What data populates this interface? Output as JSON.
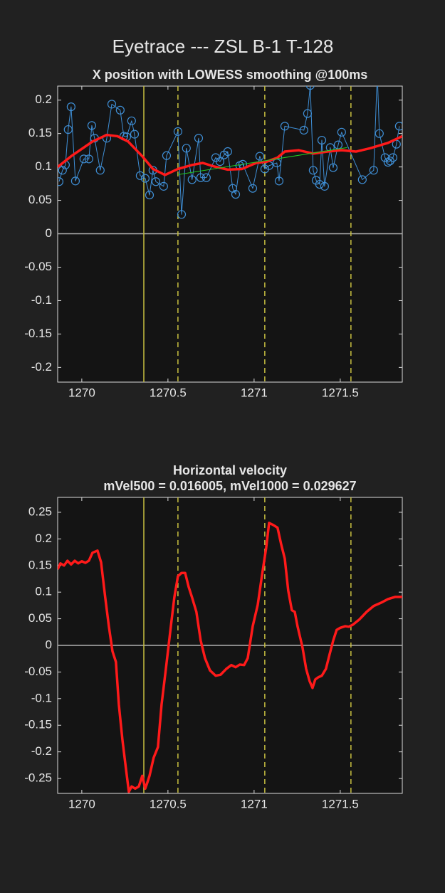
{
  "title": "Eyetrace --- ZSL B-1 T-128",
  "chart_data": [
    {
      "type": "line",
      "title": "X position with LOWESS smoothing @100ms",
      "xlim": [
        1269.86,
        1271.86
      ],
      "ylim": [
        -0.222,
        0.221
      ],
      "xticks": [
        1270,
        1270.5,
        1271,
        1271.5
      ],
      "yticks": [
        -0.2,
        -0.15,
        -0.1,
        -0.05,
        0,
        0.05,
        0.1,
        0.15,
        0.2
      ],
      "grid": false,
      "zero_line": true,
      "vline_color": "#c8c040",
      "vlines": [
        {
          "x": 1270.36,
          "style": "solid"
        },
        {
          "x": 1270.558,
          "style": "dashed"
        },
        {
          "x": 1271.062,
          "style": "dashed"
        },
        {
          "x": 1271.562,
          "style": "dashed"
        }
      ],
      "series": [
        {
          "color": "#3f8fd6",
          "marker": "circle",
          "line_width": 1,
          "x": [
            1269.868,
            1269.888,
            1269.905,
            1269.921,
            1269.938,
            1269.963,
            1270.012,
            1270.041,
            1270.058,
            1270.074,
            1270.107,
            1270.145,
            1270.174,
            1270.223,
            1270.244,
            1270.26,
            1270.289,
            1270.306,
            1270.339,
            1270.368,
            1270.393,
            1270.413,
            1270.43,
            1270.475,
            1270.492,
            1270.558,
            1270.579,
            1270.607,
            1270.64,
            1270.678,
            1270.69,
            1270.723,
            1270.777,
            1270.802,
            1270.826,
            1270.847,
            1270.876,
            1270.893,
            1270.917,
            1270.934,
            1270.992,
            1271.033,
            1271.062,
            1271.087,
            1271.132,
            1271.145,
            1271.178,
            1271.289,
            1271.31,
            1271.326,
            1271.343,
            1271.36,
            1271.38,
            1271.393,
            1271.409,
            1271.442,
            1271.459,
            1271.488,
            1271.508,
            1271.628,
            1271.694,
            1271.715,
            1271.727,
            1271.76,
            1271.777,
            1271.789,
            1271.806,
            1271.826,
            1271.843
          ],
          "values": [
            0.078,
            0.095,
            0.103,
            0.156,
            0.19,
            0.079,
            0.112,
            0.112,
            0.162,
            0.143,
            0.095,
            0.143,
            0.194,
            0.185,
            0.146,
            0.145,
            0.169,
            0.149,
            0.087,
            0.083,
            0.058,
            0.095,
            0.078,
            0.071,
            0.117,
            0.153,
            0.029,
            0.128,
            0.081,
            0.143,
            0.084,
            0.084,
            0.114,
            0.108,
            0.118,
            0.123,
            0.068,
            0.059,
            0.102,
            0.104,
            0.068,
            0.116,
            0.097,
            0.102,
            0.106,
            0.079,
            0.161,
            0.155,
            0.18,
            0.222,
            0.095,
            0.08,
            0.074,
            0.14,
            0.071,
            0.129,
            0.099,
            0.133,
            0.152,
            0.081,
            0.095,
            0.24,
            0.15,
            0.114,
            0.107,
            0.109,
            0.114,
            0.134,
            0.161
          ]
        },
        {
          "color": "#ff1a1a",
          "marker": "none",
          "line_width": 3.5,
          "x": [
            1269.86,
            1269.938,
            1270.062,
            1270.145,
            1270.207,
            1270.269,
            1270.351,
            1270.413,
            1270.483,
            1270.558,
            1270.64,
            1270.702,
            1270.764,
            1270.847,
            1270.93,
            1271.012,
            1271.074,
            1271.136,
            1271.178,
            1271.26,
            1271.343,
            1271.426,
            1271.508,
            1271.591,
            1271.674,
            1271.777,
            1271.86
          ],
          "values": [
            0.1,
            0.116,
            0.138,
            0.148,
            0.146,
            0.138,
            0.116,
            0.097,
            0.088,
            0.097,
            0.103,
            0.106,
            0.101,
            0.096,
            0.097,
            0.106,
            0.108,
            0.114,
            0.123,
            0.125,
            0.12,
            0.123,
            0.125,
            0.123,
            0.128,
            0.136,
            0.146
          ]
        },
        {
          "color": "#22cc22",
          "marker": "none",
          "line_width": 1,
          "x": [
            1270.558,
            1271.54
          ],
          "values": [
            0.0885,
            0.129
          ]
        }
      ]
    },
    {
      "type": "line",
      "title": "Horizontal velocity",
      "subtitle": "mVel500 = 0.016005, mVel1000 = 0.029627",
      "xlim": [
        1269.86,
        1271.86
      ],
      "ylim": [
        -0.278,
        0.278
      ],
      "xticks": [
        1270,
        1270.5,
        1271,
        1271.5
      ],
      "yticks": [
        -0.25,
        -0.2,
        -0.15,
        -0.1,
        -0.05,
        0,
        0.05,
        0.1,
        0.15,
        0.2,
        0.25
      ],
      "grid": false,
      "zero_line": true,
      "vline_color": "#c8c040",
      "vlines": [
        {
          "x": 1270.36,
          "style": "solid"
        },
        {
          "x": 1270.558,
          "style": "dashed"
        },
        {
          "x": 1271.062,
          "style": "dashed"
        },
        {
          "x": 1271.562,
          "style": "dashed"
        }
      ],
      "series": [
        {
          "color": "#ff1a1a",
          "marker": "none",
          "line_width": 3.5,
          "x": [
            1269.86,
            1269.876,
            1269.897,
            1269.917,
            1269.938,
            1269.959,
            1269.979,
            1270.0,
            1270.021,
            1270.041,
            1270.062,
            1270.091,
            1270.112,
            1270.136,
            1270.157,
            1270.178,
            1270.198,
            1270.215,
            1270.236,
            1270.256,
            1270.273,
            1270.289,
            1270.31,
            1270.331,
            1270.351,
            1270.368,
            1270.38,
            1270.393,
            1270.417,
            1270.442,
            1270.463,
            1270.488,
            1270.517,
            1270.537,
            1270.558,
            1270.579,
            1270.6,
            1270.62,
            1270.64,
            1270.665,
            1270.69,
            1270.715,
            1270.744,
            1270.777,
            1270.806,
            1270.839,
            1270.868,
            1270.893,
            1270.917,
            1270.942,
            1270.963,
            1270.992,
            1271.021,
            1271.045,
            1271.07,
            1271.087,
            1271.112,
            1271.136,
            1271.157,
            1271.178,
            1271.198,
            1271.219,
            1271.236,
            1271.252,
            1271.281,
            1271.302,
            1271.322,
            1271.339,
            1271.355,
            1271.372,
            1271.393,
            1271.417,
            1271.438,
            1271.459,
            1271.479,
            1271.5,
            1271.529,
            1271.55,
            1271.574,
            1271.612,
            1271.653,
            1271.694,
            1271.736,
            1271.777,
            1271.818,
            1271.86
          ],
          "values": [
            0.143,
            0.154,
            0.15,
            0.159,
            0.152,
            0.159,
            0.154,
            0.158,
            0.155,
            0.159,
            0.174,
            0.178,
            0.156,
            0.09,
            0.036,
            -0.011,
            -0.031,
            -0.111,
            -0.178,
            -0.231,
            -0.275,
            -0.265,
            -0.269,
            -0.265,
            -0.245,
            -0.269,
            -0.258,
            -0.245,
            -0.211,
            -0.191,
            -0.111,
            -0.044,
            0.036,
            0.09,
            0.13,
            0.136,
            0.136,
            0.11,
            0.09,
            0.063,
            0.009,
            -0.024,
            -0.047,
            -0.057,
            -0.055,
            -0.044,
            -0.037,
            -0.041,
            -0.036,
            -0.037,
            -0.024,
            0.036,
            0.076,
            0.13,
            0.183,
            0.23,
            0.226,
            0.221,
            0.19,
            0.163,
            0.103,
            0.066,
            0.063,
            0.036,
            -0.004,
            -0.044,
            -0.067,
            -0.08,
            -0.064,
            -0.06,
            -0.057,
            -0.044,
            -0.017,
            0.009,
            0.029,
            0.033,
            0.036,
            0.035,
            0.039,
            0.049,
            0.063,
            0.074,
            0.08,
            0.087,
            0.091,
            0.091
          ]
        }
      ]
    }
  ]
}
